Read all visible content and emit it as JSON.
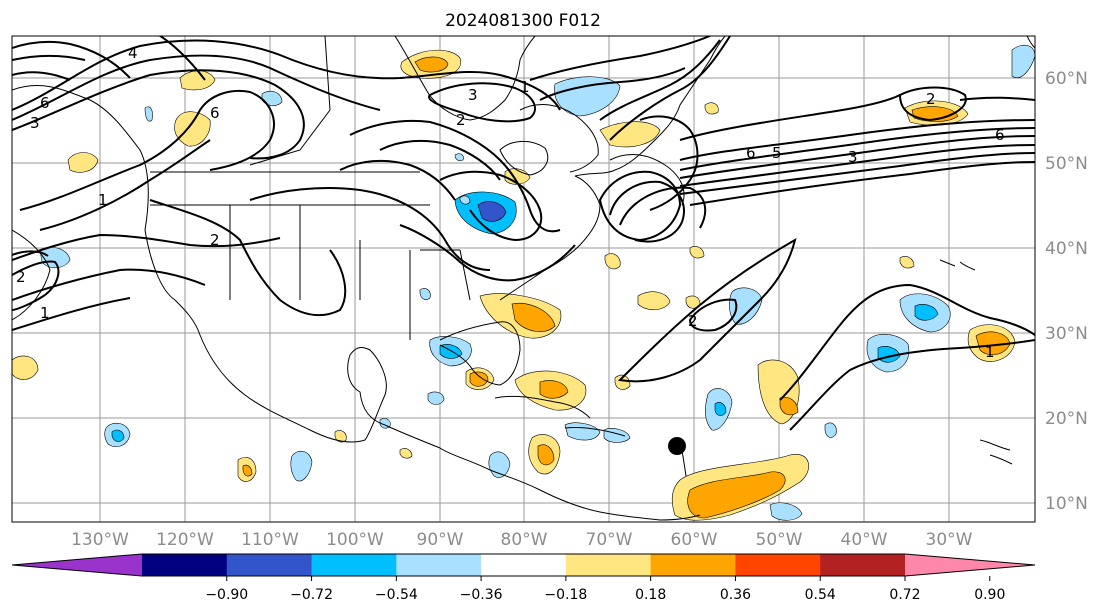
{
  "title": "2024081300 F012",
  "map": {
    "lon_labels": [
      "130°W",
      "120°W",
      "110°W",
      "100°W",
      "90°W",
      "80°W",
      "70°W",
      "60°W",
      "50°W",
      "40°W",
      "30°W"
    ],
    "lat_labels": [
      "60°N",
      "50°N",
      "40°N",
      "30°N",
      "20°N",
      "10°N"
    ],
    "contour_labels": [
      "6",
      "4",
      "3",
      "2",
      "1",
      "6",
      "3",
      "2",
      "6",
      "5",
      "3",
      "2",
      "6",
      "2",
      "1",
      "1",
      "2",
      "1"
    ],
    "storm_marker": "black-dot"
  },
  "colorbar": {
    "ticks": [
      "−0.90",
      "−0.72",
      "−0.54",
      "−0.36",
      "−0.18",
      "0.18",
      "0.36",
      "0.54",
      "0.72",
      "0.90"
    ],
    "colors": [
      "#9933cc",
      "#000080",
      "#3355cc",
      "#00bfff",
      "#aae0ff",
      "#ffffff",
      "#ffe680",
      "#ffa500",
      "#ff4500",
      "#b22222",
      "#ff88aa"
    ]
  }
}
